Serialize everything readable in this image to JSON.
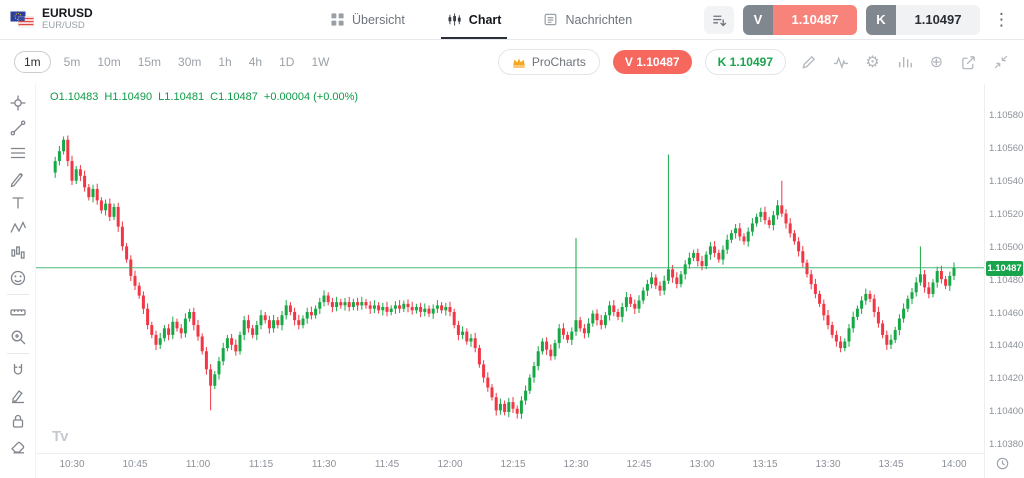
{
  "header": {
    "symbol": "EURUSD",
    "symbol_sub": "EUR/USD",
    "tabs": [
      {
        "label": "Übersicht"
      },
      {
        "label": "Chart"
      },
      {
        "label": "Nachrichten"
      }
    ],
    "sell": {
      "label": "V",
      "value": "1.10487"
    },
    "buy": {
      "label": "K",
      "value": "1.10497"
    }
  },
  "toolbar": {
    "timeframes": [
      "1m",
      "5m",
      "10m",
      "15m",
      "30m",
      "1h",
      "4h",
      "1D",
      "1W"
    ],
    "active_timeframe": "1m",
    "procharts_label": "ProCharts",
    "sell_pill": "V 1.10487",
    "buy_pill": "K 1.10497"
  },
  "sidebar": {
    "tools": [
      "crosshair",
      "trendline",
      "fib-retracement",
      "brush",
      "text",
      "xabcd-pattern",
      "forecast",
      "emoji",
      "separator",
      "measure",
      "zoom-in",
      "separator",
      "magnet",
      "draw",
      "lock",
      "eraser"
    ]
  },
  "legend": {
    "o_label": "O",
    "open": "1.10483",
    "h_label": "H",
    "high": "1.10490",
    "l_label": "L",
    "low": "1.10481",
    "c_label": "C",
    "close": "1.10487",
    "change": "+0.00004 (+0.00%)"
  },
  "icons": {
    "kebab": "⋮",
    "gear": "⚙",
    "plus": "⊕",
    "tradingview": "Tv"
  },
  "colors": {
    "up": "#17a846",
    "down": "#f23645",
    "price_line": "#2fae63",
    "sell": "#f6685e",
    "buy_text": "#18a44b"
  },
  "chart_data": {
    "type": "candlestick",
    "symbol": "EURUSD",
    "interval": "1m",
    "time_start": "10:25",
    "current_price": 1.10487,
    "current_price_label": "1.10487",
    "time_axis": {
      "labels": [
        "10:30",
        "10:45",
        "11:00",
        "11:15",
        "11:30",
        "11:45",
        "12:00",
        "12:15",
        "12:30",
        "12:45",
        "13:00",
        "13:15",
        "13:30",
        "13:45",
        "14:00"
      ],
      "first_index": 5,
      "step_minutes": 15
    },
    "price_axis": {
      "labels": [
        "1.10580",
        "1.10560",
        "1.10540",
        "1.10520",
        "1.10500",
        "1.10480",
        "1.10460",
        "1.10440",
        "1.10420",
        "1.10400",
        "1.10380"
      ],
      "max": 1.10599,
      "min": 1.10374
    },
    "closes": [
      1.10545,
      1.10552,
      1.10558,
      1.10565,
      1.10552,
      1.1054,
      1.10547,
      1.10543,
      1.10536,
      1.1053,
      1.10535,
      1.10528,
      1.10522,
      1.10526,
      1.10518,
      1.10524,
      1.10512,
      1.105,
      1.10492,
      1.10482,
      1.10476,
      1.1047,
      1.10462,
      1.10452,
      1.10446,
      1.1044,
      1.10444,
      1.1045,
      1.10446,
      1.10454,
      1.1045,
      1.10447,
      1.10456,
      1.1046,
      1.10452,
      1.10445,
      1.10436,
      1.10425,
      1.10415,
      1.10422,
      1.1043,
      1.10438,
      1.10444,
      1.1044,
      1.10436,
      1.10446,
      1.10455,
      1.1045,
      1.10446,
      1.10452,
      1.10458,
      1.10455,
      1.1045,
      1.10455,
      1.10452,
      1.10458,
      1.10464,
      1.1046,
      1.10455,
      1.10452,
      1.10456,
      1.1046,
      1.10458,
      1.10462,
      1.10466,
      1.1047,
      1.10466,
      1.10463,
      1.10466,
      1.10464,
      1.10466,
      1.10463,
      1.10466,
      1.10464,
      1.10466,
      1.10464,
      1.10462,
      1.10464,
      1.10461,
      1.10463,
      1.1046,
      1.10462,
      1.10464,
      1.10462,
      1.10465,
      1.10463,
      1.10461,
      1.10463,
      1.1046,
      1.10462,
      1.10459,
      1.10462,
      1.10464,
      1.10461,
      1.10463,
      1.1046,
      1.10452,
      1.10446,
      1.10448,
      1.10442,
      1.10444,
      1.10438,
      1.10428,
      1.1042,
      1.10414,
      1.10408,
      1.104,
      1.10404,
      1.10399,
      1.10405,
      1.10401,
      1.10398,
      1.10406,
      1.10412,
      1.1042,
      1.10427,
      1.10436,
      1.10442,
      1.10437,
      1.10433,
      1.10441,
      1.1045,
      1.10446,
      1.10443,
      1.10448,
      1.10455,
      1.1045,
      1.10447,
      1.10453,
      1.10459,
      1.10455,
      1.10452,
      1.10458,
      1.10464,
      1.1046,
      1.10457,
      1.10463,
      1.10469,
      1.10465,
      1.10462,
      1.10467,
      1.10473,
      1.10477,
      1.10481,
      1.10476,
      1.10473,
      1.10479,
      1.10486,
      1.10481,
      1.10477,
      1.10483,
      1.10489,
      1.10493,
      1.10496,
      1.10491,
      1.10488,
      1.10495,
      1.105,
      1.10496,
      1.10492,
      1.10498,
      1.10504,
      1.10508,
      1.10511,
      1.10506,
      1.10503,
      1.10509,
      1.10514,
      1.10518,
      1.10521,
      1.10516,
      1.10513,
      1.10519,
      1.10525,
      1.1052,
      1.10514,
      1.10508,
      1.10503,
      1.10497,
      1.1049,
      1.10483,
      1.10477,
      1.10471,
      1.10465,
      1.10458,
      1.10452,
      1.10446,
      1.10442,
      1.10438,
      1.10442,
      1.1045,
      1.10457,
      1.10462,
      1.10467,
      1.10471,
      1.10468,
      1.1046,
      1.10453,
      1.10446,
      1.1044,
      1.10443,
      1.10449,
      1.10456,
      1.10462,
      1.10468,
      1.10472,
      1.10478,
      1.10483,
      1.10475,
      1.10471,
      1.10478,
      1.10485,
      1.1048,
      1.10476,
      1.10482,
      1.10487
    ],
    "spikes": [
      {
        "i": 38,
        "low": 1.104
      },
      {
        "i": 111,
        "low": 1.10395
      },
      {
        "i": 125,
        "high": 1.10505
      },
      {
        "i": 147,
        "high": 1.10556
      },
      {
        "i": 174,
        "high": 1.1054
      },
      {
        "i": 207,
        "high": 1.105
      }
    ]
  }
}
